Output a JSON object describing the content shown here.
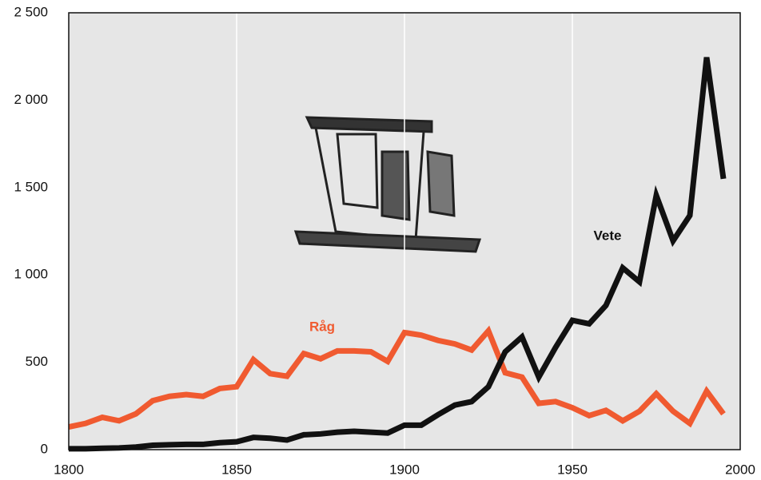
{
  "chart_data": {
    "type": "line",
    "x": [
      1800,
      1805,
      1810,
      1815,
      1820,
      1825,
      1830,
      1835,
      1840,
      1845,
      1850,
      1855,
      1860,
      1865,
      1870,
      1875,
      1880,
      1885,
      1890,
      1895,
      1900,
      1905,
      1910,
      1915,
      1920,
      1925,
      1930,
      1935,
      1940,
      1945,
      1950,
      1955,
      1960,
      1965,
      1970,
      1975,
      1980,
      1985,
      1990,
      1995
    ],
    "series": [
      {
        "name": "Råg",
        "color": "#f05a30",
        "values": [
          130,
          150,
          185,
          165,
          205,
          280,
          305,
          315,
          305,
          350,
          360,
          515,
          435,
          420,
          550,
          520,
          565,
          565,
          560,
          505,
          670,
          655,
          625,
          605,
          570,
          680,
          440,
          415,
          265,
          275,
          240,
          195,
          225,
          165,
          220,
          320,
          220,
          150,
          335,
          205
        ]
      },
      {
        "name": "Vete",
        "color": "#111111",
        "values": [
          5,
          5,
          8,
          10,
          15,
          25,
          28,
          30,
          30,
          40,
          45,
          70,
          65,
          55,
          85,
          90,
          100,
          105,
          100,
          95,
          140,
          140,
          200,
          255,
          275,
          360,
          560,
          645,
          415,
          585,
          740,
          720,
          825,
          1040,
          960,
          1455,
          1195,
          1340,
          2245,
          1550
        ]
      }
    ],
    "xlim": [
      1800,
      2000
    ],
    "xticks": [
      1800,
      1850,
      1900,
      1950,
      2000
    ],
    "ylim": [
      0,
      2500
    ],
    "yticks": [
      0,
      500,
      {
        "value": 1000,
        "label": "1 000"
      },
      {
        "value": 1500,
        "label": "1 500"
      },
      {
        "value": 2000,
        "label": "2 000"
      },
      {
        "value": 2500,
        "label": "2 500"
      }
    ],
    "grid": "x"
  }
}
